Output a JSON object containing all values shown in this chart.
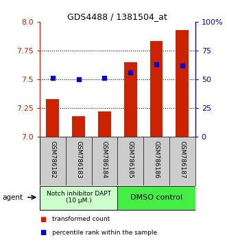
{
  "title": "GDS4488 / 1381504_at",
  "samples": [
    "GSM786182",
    "GSM786183",
    "GSM786184",
    "GSM786185",
    "GSM786186",
    "GSM786187"
  ],
  "bar_values": [
    7.33,
    7.18,
    7.22,
    7.65,
    7.83,
    7.93
  ],
  "percentile_values": [
    7.51,
    7.5,
    7.51,
    7.56,
    7.63,
    7.62
  ],
  "ylim": [
    7.0,
    8.0
  ],
  "yticks_left": [
    7.0,
    7.25,
    7.5,
    7.75,
    8.0
  ],
  "yticks_right": [
    0,
    25,
    50,
    75,
    100
  ],
  "bar_color": "#cc2200",
  "dot_color": "#0000cc",
  "group1_label": "Notch inhibitor DAPT\n(10 μM.)",
  "group2_label": "DMSO control",
  "group1_color": "#ccffcc",
  "group2_color": "#44ee44",
  "legend_bar_label": "transformed count",
  "legend_dot_label": "percentile rank within the sample",
  "background_color": "#ffffff",
  "sample_bg_color": "#cccccc"
}
